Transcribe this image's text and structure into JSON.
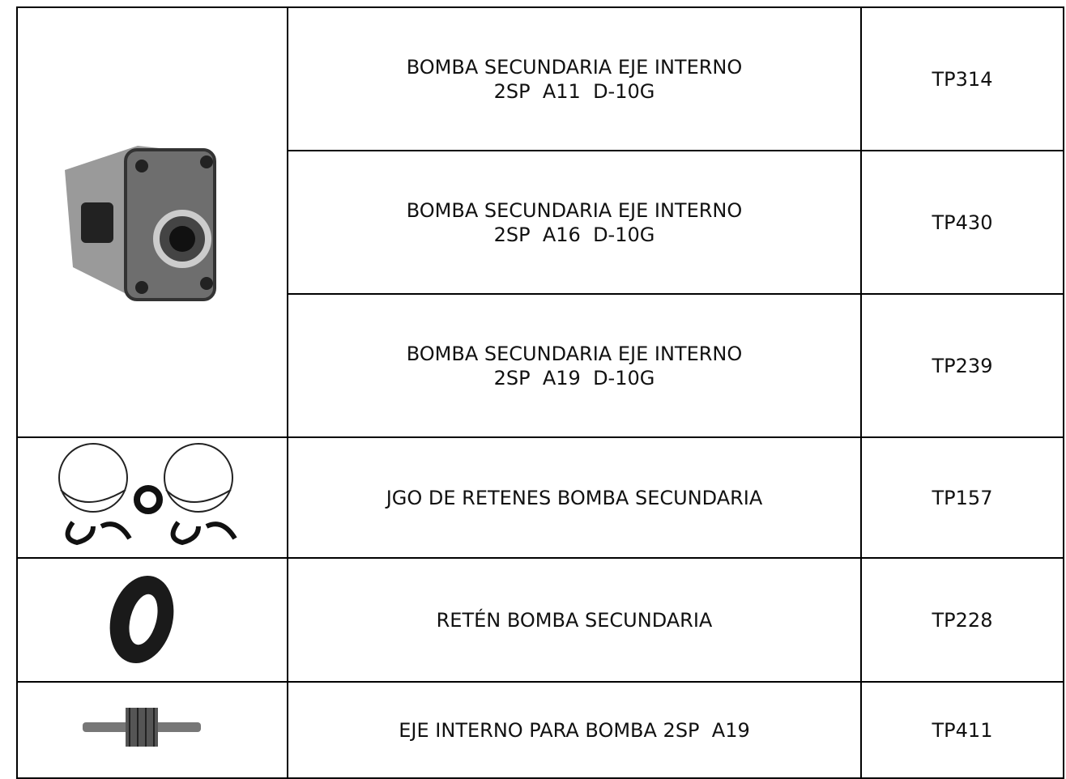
{
  "table": {
    "rows": [
      {
        "description": [
          "BOMBA SECUNDARIA EJE INTERNO",
          "2SP  A11  D-10G"
        ],
        "code": "TP314"
      },
      {
        "description": [
          "BOMBA SECUNDARIA EJE INTERNO",
          "2SP  A16  D-10G"
        ],
        "code": "TP430"
      },
      {
        "description": [
          "BOMBA SECUNDARIA EJE INTERNO",
          "2SP  A19  D-10G"
        ],
        "code": "TP239"
      },
      {
        "description": [
          "JGO DE RETENES BOMBA SECUNDARIA"
        ],
        "code": "TP157"
      },
      {
        "description": [
          "RETÉN BOMBA SECUNDARIA"
        ],
        "code": "TP228"
      },
      {
        "description": [
          "EJE INTERNO PARA BOMBA 2SP  A19"
        ],
        "code": "TP411"
      }
    ]
  }
}
